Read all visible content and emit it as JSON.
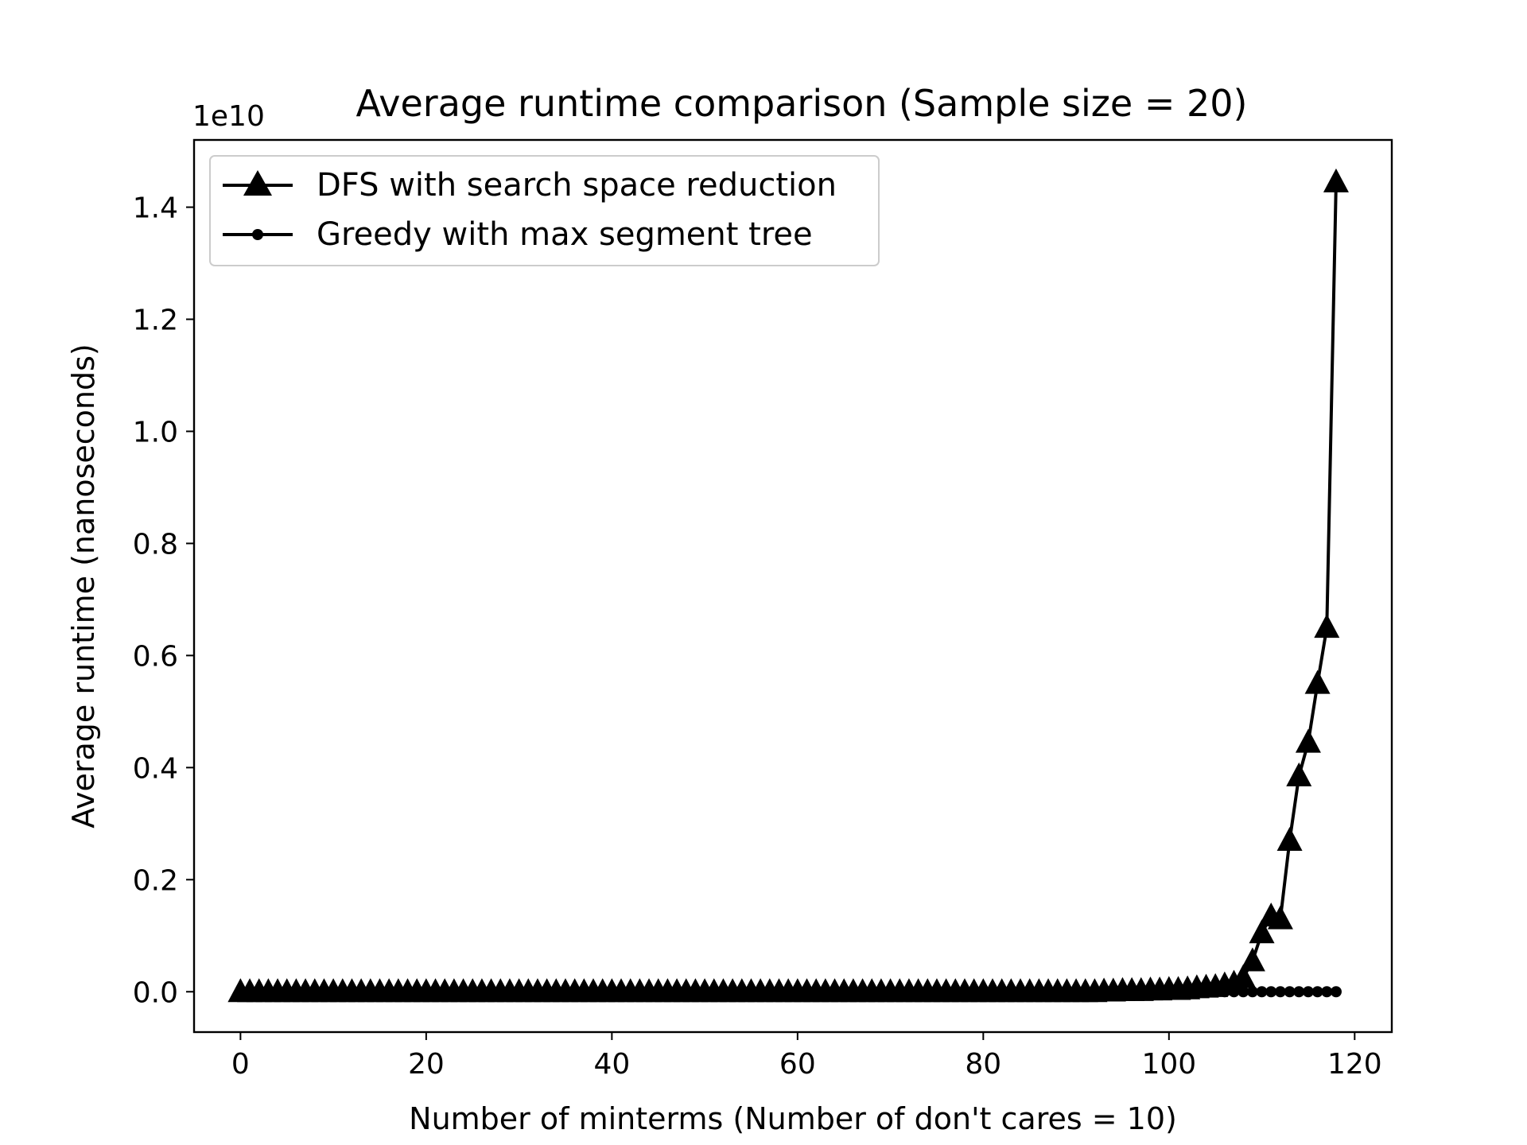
{
  "chart_data": {
    "type": "line",
    "title": "Average runtime comparison (Sample size = 20)",
    "xlabel": "Number of minterms (Number of don't cares = 10)",
    "ylabel": "Average runtime (nanoseconds)",
    "y_offset_label": "1e10",
    "y_scale": 10000000000,
    "xlim": [
      -5,
      124
    ],
    "ylim": [
      -0.072,
      1.52
    ],
    "x_ticks": [
      0,
      20,
      40,
      60,
      80,
      100,
      120
    ],
    "x_tick_labels": [
      "0",
      "20",
      "40",
      "60",
      "80",
      "100",
      "120"
    ],
    "y_ticks": [
      0.0,
      0.2,
      0.4,
      0.6,
      0.8,
      1.0,
      1.2,
      1.4
    ],
    "y_tick_labels": [
      "0.0",
      "0.2",
      "0.4",
      "0.6",
      "0.8",
      "1.0",
      "1.2",
      "1.4"
    ],
    "grid": false,
    "legend_position": "top-left",
    "series": [
      {
        "name": "DFS with search space reduction",
        "marker": "triangle",
        "color": "#000000",
        "x": [
          0,
          1,
          2,
          3,
          4,
          5,
          6,
          7,
          8,
          9,
          10,
          11,
          12,
          13,
          14,
          15,
          16,
          17,
          18,
          19,
          20,
          21,
          22,
          23,
          24,
          25,
          26,
          27,
          28,
          29,
          30,
          31,
          32,
          33,
          34,
          35,
          36,
          37,
          38,
          39,
          40,
          41,
          42,
          43,
          44,
          45,
          46,
          47,
          48,
          49,
          50,
          51,
          52,
          53,
          54,
          55,
          56,
          57,
          58,
          59,
          60,
          61,
          62,
          63,
          64,
          65,
          66,
          67,
          68,
          69,
          70,
          71,
          72,
          73,
          74,
          75,
          76,
          77,
          78,
          79,
          80,
          81,
          82,
          83,
          84,
          85,
          86,
          87,
          88,
          89,
          90,
          91,
          92,
          93,
          94,
          95,
          96,
          97,
          98,
          99,
          100,
          101,
          102,
          103,
          104,
          105,
          106,
          107,
          108,
          109,
          110,
          111,
          112,
          113,
          114,
          115,
          116,
          117,
          118
        ],
        "y": [
          0,
          0,
          0,
          0,
          0,
          0,
          0,
          0,
          0,
          0,
          0,
          0,
          0,
          0,
          0,
          0,
          0,
          0,
          0,
          0,
          0,
          0,
          0,
          0,
          0,
          0,
          0,
          0,
          0,
          0,
          0,
          0,
          0,
          0,
          0,
          0,
          0,
          0,
          0,
          0,
          0,
          0,
          0,
          0,
          0,
          0,
          0,
          0,
          0,
          0,
          0,
          0,
          0,
          0,
          0,
          0,
          0,
          0,
          0,
          0,
          0,
          0,
          0,
          0,
          0,
          0,
          0,
          0,
          0,
          0,
          0,
          0,
          0,
          0,
          0,
          0,
          0,
          0,
          0,
          0,
          0,
          0,
          0,
          0,
          0,
          0,
          0,
          0,
          0,
          0,
          0,
          0,
          0,
          0.001,
          0.001,
          0.002,
          0.002,
          0.002,
          0.003,
          0.003,
          0.004,
          0.004,
          0.005,
          0.007,
          0.008,
          0.009,
          0.012,
          0.015,
          0.025,
          0.055,
          0.105,
          0.135,
          0.13,
          0.27,
          0.385,
          0.445,
          0.55,
          0.65,
          1.445
        ]
      },
      {
        "name": "Greedy with max segment tree",
        "marker": "circle",
        "color": "#000000",
        "x": [
          0,
          1,
          2,
          3,
          4,
          5,
          6,
          7,
          8,
          9,
          10,
          11,
          12,
          13,
          14,
          15,
          16,
          17,
          18,
          19,
          20,
          21,
          22,
          23,
          24,
          25,
          26,
          27,
          28,
          29,
          30,
          31,
          32,
          33,
          34,
          35,
          36,
          37,
          38,
          39,
          40,
          41,
          42,
          43,
          44,
          45,
          46,
          47,
          48,
          49,
          50,
          51,
          52,
          53,
          54,
          55,
          56,
          57,
          58,
          59,
          60,
          61,
          62,
          63,
          64,
          65,
          66,
          67,
          68,
          69,
          70,
          71,
          72,
          73,
          74,
          75,
          76,
          77,
          78,
          79,
          80,
          81,
          82,
          83,
          84,
          85,
          86,
          87,
          88,
          89,
          90,
          91,
          92,
          93,
          94,
          95,
          96,
          97,
          98,
          99,
          100,
          101,
          102,
          103,
          104,
          105,
          106,
          107,
          108,
          109,
          110,
          111,
          112,
          113,
          114,
          115,
          116,
          117,
          118
        ],
        "y": [
          0,
          0,
          0,
          0,
          0,
          0,
          0,
          0,
          0,
          0,
          0,
          0,
          0,
          0,
          0,
          0,
          0,
          0,
          0,
          0,
          0,
          0,
          0,
          0,
          0,
          0,
          0,
          0,
          0,
          0,
          0,
          0,
          0,
          0,
          0,
          0,
          0,
          0,
          0,
          0,
          0,
          0,
          0,
          0,
          0,
          0,
          0,
          0,
          0,
          0,
          0,
          0,
          0,
          0,
          0,
          0,
          0,
          0,
          0,
          0,
          0,
          0,
          0,
          0,
          0,
          0,
          0,
          0,
          0,
          0,
          0,
          0,
          0,
          0,
          0,
          0,
          0,
          0,
          0,
          0,
          0,
          0,
          0,
          0,
          0,
          0,
          0,
          0,
          0,
          0,
          0,
          0,
          0,
          0,
          0,
          0,
          0,
          0,
          0,
          0,
          0,
          0,
          0,
          0,
          0,
          0,
          0,
          0,
          0,
          0,
          0,
          0,
          0,
          0,
          0,
          0,
          0,
          0,
          0
        ]
      }
    ]
  }
}
